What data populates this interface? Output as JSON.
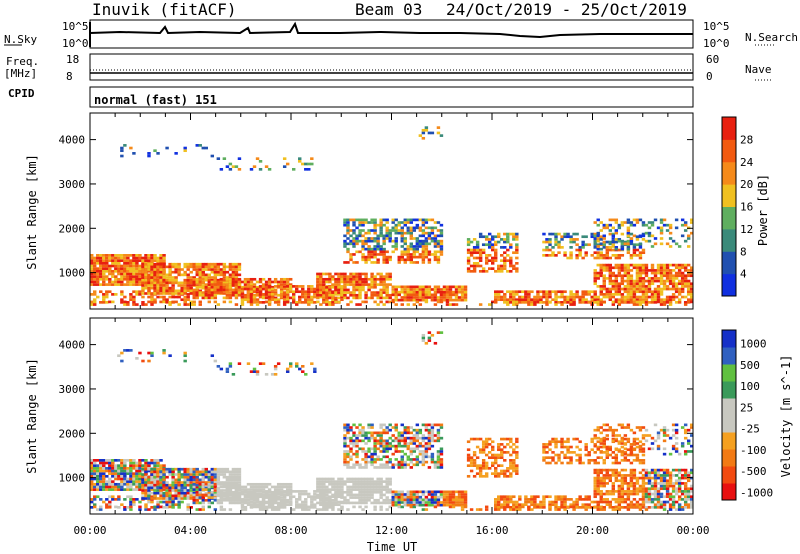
{
  "header": {
    "station": "Inuvik (fitACF)",
    "beam": "Beam 03",
    "date_range": "24/Oct/2019 - 25/Oct/2019"
  },
  "noise_panel": {
    "left_label": "N.Sky",
    "right_label": "N.Search",
    "left_ticks": [
      "10^5",
      "10^0"
    ],
    "right_ticks": [
      "10^5",
      "10^0"
    ]
  },
  "freq_panel": {
    "left_label_1": "Freq.",
    "left_label_2": "[MHz]",
    "right_label": "Nave",
    "left_ticks": [
      "18",
      "8"
    ],
    "right_ticks": [
      "60",
      "0"
    ]
  },
  "cpid_panel": {
    "label": "CPID",
    "value": "normal (fast) 151"
  },
  "colors": {
    "power_scale": [
      "#1030e0",
      "#2050b0",
      "#3a8a7a",
      "#5fae5f",
      "#f0c020",
      "#f58a1a",
      "#f25a10",
      "#e82010"
    ],
    "velocity_scale": [
      "#e81010",
      "#f24a10",
      "#f27a14",
      "#f5a020",
      "#c8c8c0",
      "#c8c8c0",
      "#3a9a5a",
      "#60c040",
      "#3060c0",
      "#1530c8"
    ]
  },
  "chart_data": [
    {
      "type": "heatmap",
      "title": "Power",
      "xlabel": "",
      "ylabel": "Slant Range [km]",
      "x_ticks": [
        "00:00",
        "04:00",
        "08:00",
        "12:00",
        "16:00",
        "20:00",
        "00:00"
      ],
      "y_ticks": [
        1000,
        2000,
        3000,
        4000
      ],
      "ylim": [
        180,
        4600
      ],
      "colorbar_label": "Power [dB]",
      "colorbar_ticks": [
        4,
        8,
        12,
        16,
        20,
        24,
        28
      ],
      "colorbar_range": [
        0,
        32
      ],
      "grid": false
    },
    {
      "type": "heatmap",
      "title": "Velocity",
      "xlabel": "Time UT",
      "ylabel": "Slant Range [km]",
      "x_ticks": [
        "00:00",
        "04:00",
        "08:00",
        "12:00",
        "16:00",
        "20:00",
        "00:00"
      ],
      "y_ticks": [
        1000,
        2000,
        3000,
        4000
      ],
      "ylim": [
        180,
        4600
      ],
      "colorbar_label": "Velocity [m s^-1]",
      "colorbar_ticks": [
        1000,
        500,
        100,
        25,
        -25,
        -100,
        -500,
        -1000
      ],
      "grid": false
    }
  ]
}
